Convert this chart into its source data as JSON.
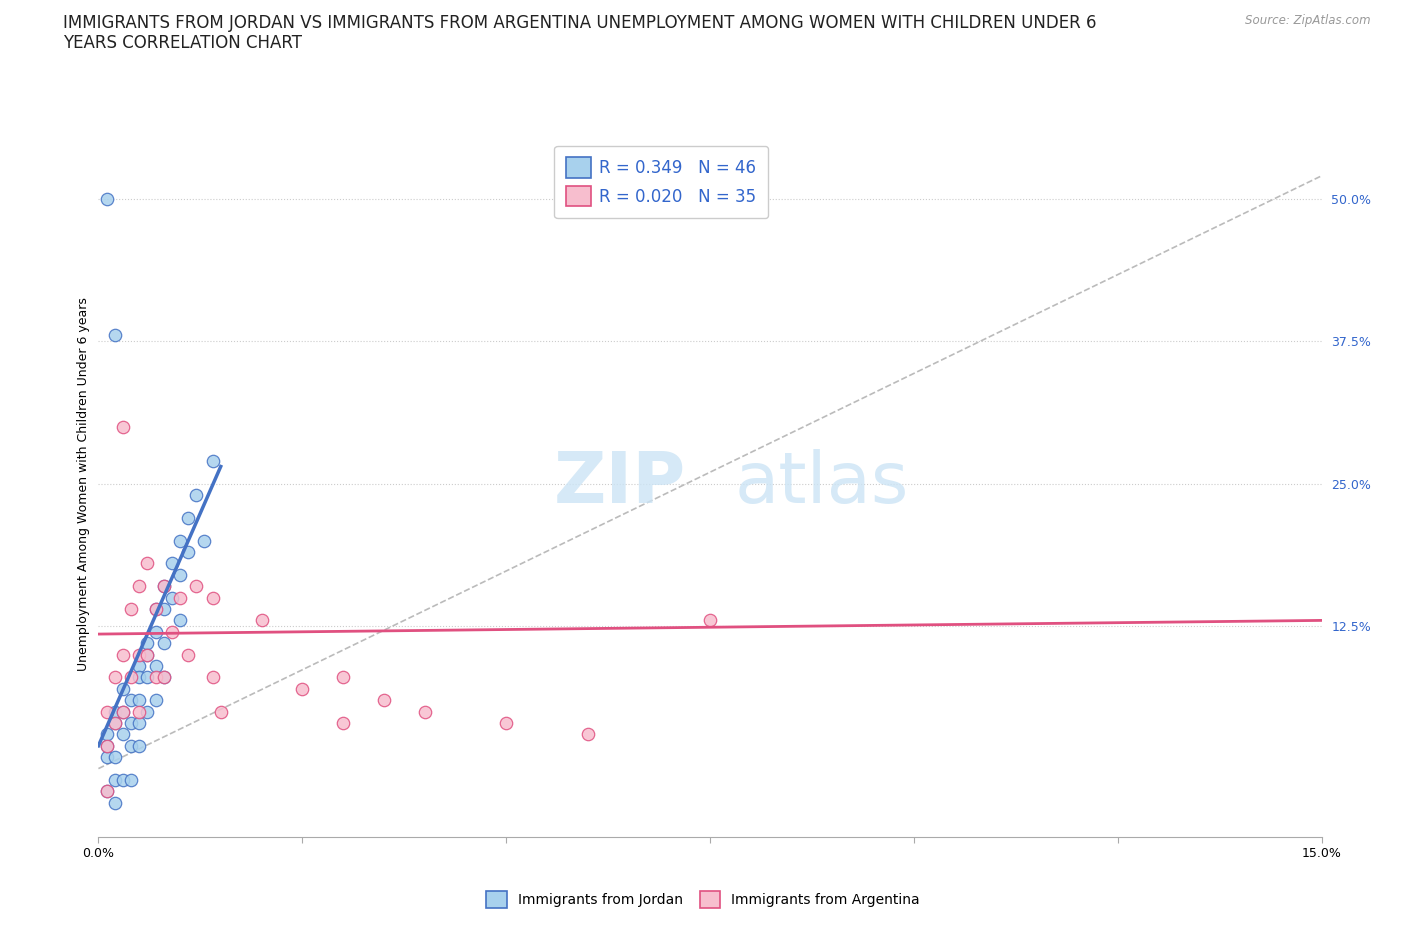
{
  "title_line1": "IMMIGRANTS FROM JORDAN VS IMMIGRANTS FROM ARGENTINA UNEMPLOYMENT AMONG WOMEN WITH CHILDREN UNDER 6",
  "title_line2": "YEARS CORRELATION CHART",
  "source": "Source: ZipAtlas.com",
  "ylabel": "Unemployment Among Women with Children Under 6 years",
  "xlim": [
    0.0,
    0.15
  ],
  "ylim": [
    -0.06,
    0.56
  ],
  "yticks_right": [
    0.125,
    0.25,
    0.375,
    0.5
  ],
  "ytick_right_labels": [
    "12.5%",
    "25.0%",
    "37.5%",
    "50.0%"
  ],
  "grid_yticks": [
    0.125,
    0.25,
    0.375,
    0.5
  ],
  "jordan_color": "#a8d1ed",
  "argentina_color": "#f7bece",
  "jordan_edge": "#4472c4",
  "argentina_edge": "#e05080",
  "jordan_R": 0.349,
  "jordan_N": 46,
  "argentina_R": 0.02,
  "argentina_N": 35,
  "legend_R_color": "#3366cc",
  "watermark_zip": "ZIP",
  "watermark_atlas": "atlas",
  "jordan_scatter_x": [
    0.001,
    0.001,
    0.001,
    0.001,
    0.002,
    0.002,
    0.002,
    0.002,
    0.002,
    0.003,
    0.003,
    0.003,
    0.003,
    0.004,
    0.004,
    0.004,
    0.004,
    0.005,
    0.005,
    0.005,
    0.005,
    0.005,
    0.006,
    0.006,
    0.006,
    0.006,
    0.007,
    0.007,
    0.007,
    0.007,
    0.008,
    0.008,
    0.008,
    0.008,
    0.009,
    0.009,
    0.01,
    0.01,
    0.01,
    0.011,
    0.011,
    0.012,
    0.013,
    0.014,
    0.001,
    0.002
  ],
  "jordan_scatter_y": [
    0.01,
    0.02,
    0.03,
    -0.02,
    0.04,
    0.05,
    0.01,
    -0.01,
    -0.03,
    0.07,
    0.05,
    0.03,
    -0.01,
    0.06,
    0.04,
    0.02,
    -0.01,
    0.09,
    0.08,
    0.06,
    0.04,
    0.02,
    0.11,
    0.1,
    0.08,
    0.05,
    0.14,
    0.12,
    0.09,
    0.06,
    0.16,
    0.14,
    0.11,
    0.08,
    0.18,
    0.15,
    0.2,
    0.17,
    0.13,
    0.22,
    0.19,
    0.24,
    0.2,
    0.27,
    0.5,
    0.38
  ],
  "argentina_scatter_x": [
    0.001,
    0.001,
    0.001,
    0.002,
    0.002,
    0.003,
    0.003,
    0.004,
    0.004,
    0.005,
    0.005,
    0.005,
    0.006,
    0.006,
    0.007,
    0.007,
    0.008,
    0.008,
    0.009,
    0.01,
    0.011,
    0.012,
    0.014,
    0.014,
    0.015,
    0.02,
    0.025,
    0.03,
    0.03,
    0.035,
    0.04,
    0.05,
    0.06,
    0.075,
    0.003
  ],
  "argentina_scatter_y": [
    0.05,
    0.02,
    -0.02,
    0.08,
    0.04,
    0.1,
    0.05,
    0.14,
    0.08,
    0.16,
    0.1,
    0.05,
    0.18,
    0.1,
    0.14,
    0.08,
    0.16,
    0.08,
    0.12,
    0.15,
    0.1,
    0.16,
    0.15,
    0.08,
    0.05,
    0.13,
    0.07,
    0.08,
    0.04,
    0.06,
    0.05,
    0.04,
    0.03,
    0.13,
    0.3
  ],
  "jordan_line_x": [
    0.0,
    0.015
  ],
  "jordan_line_y": [
    0.02,
    0.265
  ],
  "argentina_line_x": [
    0.0,
    0.15
  ],
  "argentina_line_y": [
    0.118,
    0.13
  ],
  "diag_line_x": [
    0.0,
    0.15
  ],
  "diag_line_y": [
    0.0,
    0.52
  ],
  "background_color": "#ffffff",
  "title_fontsize": 12,
  "axis_label_fontsize": 9,
  "tick_fontsize": 9,
  "legend_fontsize": 12
}
